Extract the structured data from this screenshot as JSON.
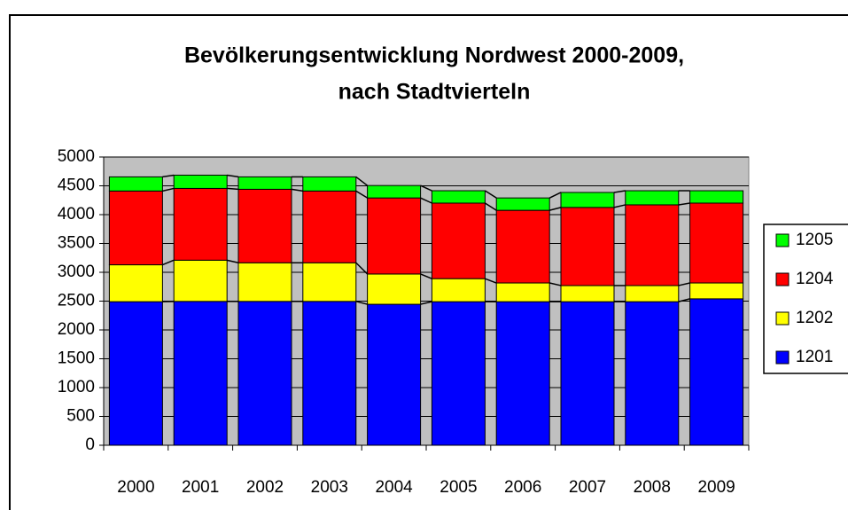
{
  "chart_data": {
    "type": "stacked_bar",
    "title": [
      "Bevölkerungsentwicklung Nordwest 2000-2009,",
      "nach Stadtvierteln"
    ],
    "categories": [
      "2000",
      "2001",
      "2002",
      "2003",
      "2004",
      "2005",
      "2006",
      "2007",
      "2008",
      "2009"
    ],
    "series": [
      {
        "name": "1201",
        "color": "#0000ff",
        "values": [
          2490,
          2495,
          2495,
          2495,
          2445,
          2490,
          2490,
          2490,
          2490,
          2540
        ]
      },
      {
        "name": "1202",
        "color": "#ffff00",
        "values": [
          640,
          715,
          670,
          670,
          525,
          400,
          325,
          280,
          280,
          275
        ]
      },
      {
        "name": "1204",
        "color": "#ff0000",
        "values": [
          1280,
          1245,
          1275,
          1245,
          1320,
          1310,
          1260,
          1355,
          1400,
          1385
        ]
      },
      {
        "name": "1205",
        "color": "#00ff00",
        "values": [
          245,
          230,
          215,
          245,
          215,
          215,
          215,
          260,
          245,
          215
        ]
      }
    ],
    "ylim": [
      0,
      5000
    ],
    "yticks": [
      0,
      500,
      1000,
      1500,
      2000,
      2500,
      3000,
      3500,
      4000,
      4500,
      5000
    ],
    "grid": true,
    "legend": "right"
  }
}
